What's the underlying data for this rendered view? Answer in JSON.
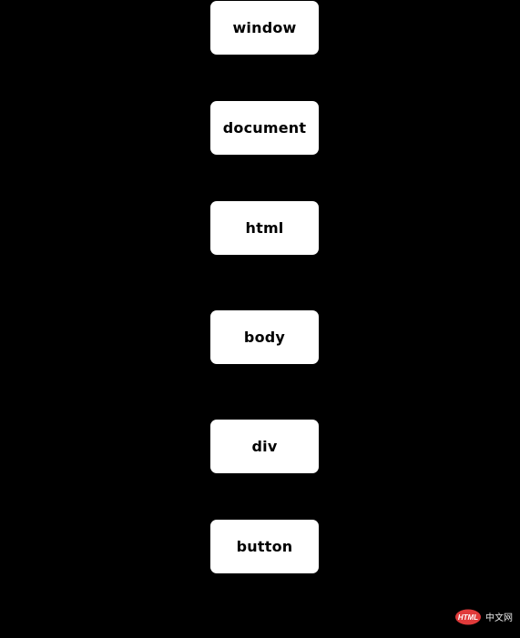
{
  "diagram": {
    "nodes": [
      {
        "id": "window",
        "label": "window"
      },
      {
        "id": "document",
        "label": "document"
      },
      {
        "id": "html",
        "label": "html"
      },
      {
        "id": "body",
        "label": "body"
      },
      {
        "id": "div",
        "label": "div"
      },
      {
        "id": "button",
        "label": "button"
      }
    ]
  },
  "watermark": {
    "badge_text": "HTML",
    "site_text": "中文网",
    "badge_color": "#e03a3a",
    "text_color": "#e8e8e8"
  },
  "colors": {
    "background": "#000000",
    "node_fill": "#ffffff",
    "node_text": "#000000"
  }
}
